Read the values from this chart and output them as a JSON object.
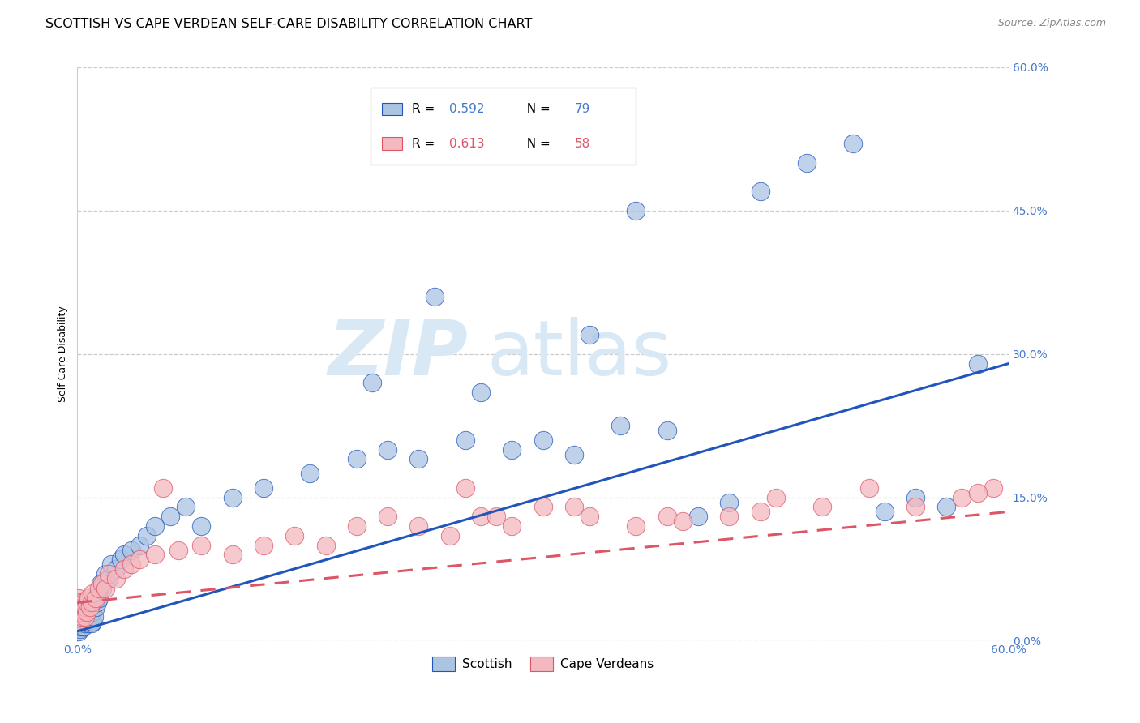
{
  "title": "SCOTTISH VS CAPE VERDEAN SELF-CARE DISABILITY CORRELATION CHART",
  "source": "Source: ZipAtlas.com",
  "ylabel": "Self-Care Disability",
  "ytick_labels": [
    "0.0%",
    "15.0%",
    "30.0%",
    "45.0%",
    "60.0%"
  ],
  "ytick_values": [
    0.0,
    0.15,
    0.3,
    0.45,
    0.6
  ],
  "xlim": [
    0.0,
    0.6
  ],
  "ylim": [
    0.0,
    0.6
  ],
  "legend_R1": "0.592",
  "legend_N1": "79",
  "legend_R2": "0.613",
  "legend_N2": "58",
  "legend_label1": "Scottish",
  "legend_label2": "Cape Verdeans",
  "scatter_color_blue": "#aac4e2",
  "scatter_color_pink": "#f4b8c0",
  "line_color_blue": "#2255bb",
  "line_color_pink": "#dd5566",
  "tick_color": "#4477cc",
  "watermark_zip": "ZIP",
  "watermark_atlas": "atlas",
  "watermark_color": "#d8e8f5",
  "title_fontsize": 11.5,
  "source_fontsize": 9,
  "axis_label_fontsize": 9,
  "tick_fontsize": 10,
  "legend_fontsize": 11,
  "scottish_x": [
    0.001,
    0.001,
    0.001,
    0.001,
    0.001,
    0.001,
    0.001,
    0.002,
    0.002,
    0.002,
    0.002,
    0.002,
    0.002,
    0.003,
    0.003,
    0.003,
    0.003,
    0.003,
    0.004,
    0.004,
    0.004,
    0.005,
    0.005,
    0.005,
    0.006,
    0.006,
    0.007,
    0.007,
    0.008,
    0.008,
    0.009,
    0.009,
    0.01,
    0.01,
    0.011,
    0.012,
    0.013,
    0.014,
    0.015,
    0.016,
    0.018,
    0.02,
    0.022,
    0.025,
    0.028,
    0.03,
    0.035,
    0.04,
    0.045,
    0.05,
    0.06,
    0.07,
    0.08,
    0.1,
    0.12,
    0.15,
    0.18,
    0.2,
    0.22,
    0.25,
    0.28,
    0.3,
    0.32,
    0.35,
    0.38,
    0.4,
    0.42,
    0.44,
    0.47,
    0.5,
    0.52,
    0.54,
    0.56,
    0.58,
    0.19,
    0.23,
    0.26,
    0.33,
    0.36
  ],
  "scottish_y": [
    0.01,
    0.015,
    0.02,
    0.025,
    0.03,
    0.018,
    0.022,
    0.012,
    0.018,
    0.025,
    0.03,
    0.022,
    0.015,
    0.02,
    0.025,
    0.015,
    0.03,
    0.018,
    0.02,
    0.028,
    0.015,
    0.025,
    0.018,
    0.022,
    0.02,
    0.03,
    0.018,
    0.025,
    0.022,
    0.03,
    0.018,
    0.025,
    0.02,
    0.03,
    0.025,
    0.035,
    0.04,
    0.045,
    0.06,
    0.055,
    0.07,
    0.065,
    0.08,
    0.075,
    0.085,
    0.09,
    0.095,
    0.1,
    0.11,
    0.12,
    0.13,
    0.14,
    0.12,
    0.15,
    0.16,
    0.175,
    0.19,
    0.2,
    0.19,
    0.21,
    0.2,
    0.21,
    0.195,
    0.225,
    0.22,
    0.13,
    0.145,
    0.47,
    0.5,
    0.52,
    0.135,
    0.15,
    0.14,
    0.29,
    0.27,
    0.36,
    0.26,
    0.32,
    0.45
  ],
  "cape_x": [
    0.001,
    0.001,
    0.001,
    0.002,
    0.002,
    0.002,
    0.003,
    0.003,
    0.004,
    0.004,
    0.005,
    0.005,
    0.006,
    0.006,
    0.007,
    0.008,
    0.009,
    0.01,
    0.012,
    0.014,
    0.016,
    0.018,
    0.02,
    0.025,
    0.03,
    0.035,
    0.04,
    0.05,
    0.055,
    0.065,
    0.08,
    0.1,
    0.12,
    0.14,
    0.16,
    0.18,
    0.2,
    0.22,
    0.24,
    0.26,
    0.28,
    0.3,
    0.33,
    0.36,
    0.38,
    0.42,
    0.45,
    0.48,
    0.51,
    0.54,
    0.57,
    0.59,
    0.25,
    0.27,
    0.32,
    0.39,
    0.44,
    0.58
  ],
  "cape_y": [
    0.025,
    0.035,
    0.045,
    0.02,
    0.03,
    0.04,
    0.025,
    0.035,
    0.03,
    0.04,
    0.025,
    0.035,
    0.03,
    0.04,
    0.045,
    0.035,
    0.04,
    0.05,
    0.045,
    0.055,
    0.06,
    0.055,
    0.07,
    0.065,
    0.075,
    0.08,
    0.085,
    0.09,
    0.16,
    0.095,
    0.1,
    0.09,
    0.1,
    0.11,
    0.1,
    0.12,
    0.13,
    0.12,
    0.11,
    0.13,
    0.12,
    0.14,
    0.13,
    0.12,
    0.13,
    0.13,
    0.15,
    0.14,
    0.16,
    0.14,
    0.15,
    0.16,
    0.16,
    0.13,
    0.14,
    0.125,
    0.135,
    0.155
  ],
  "blue_line_x": [
    0.0,
    0.6
  ],
  "blue_line_y": [
    0.01,
    0.29
  ],
  "pink_line_x": [
    0.0,
    0.6
  ],
  "pink_line_y": [
    0.04,
    0.135
  ]
}
